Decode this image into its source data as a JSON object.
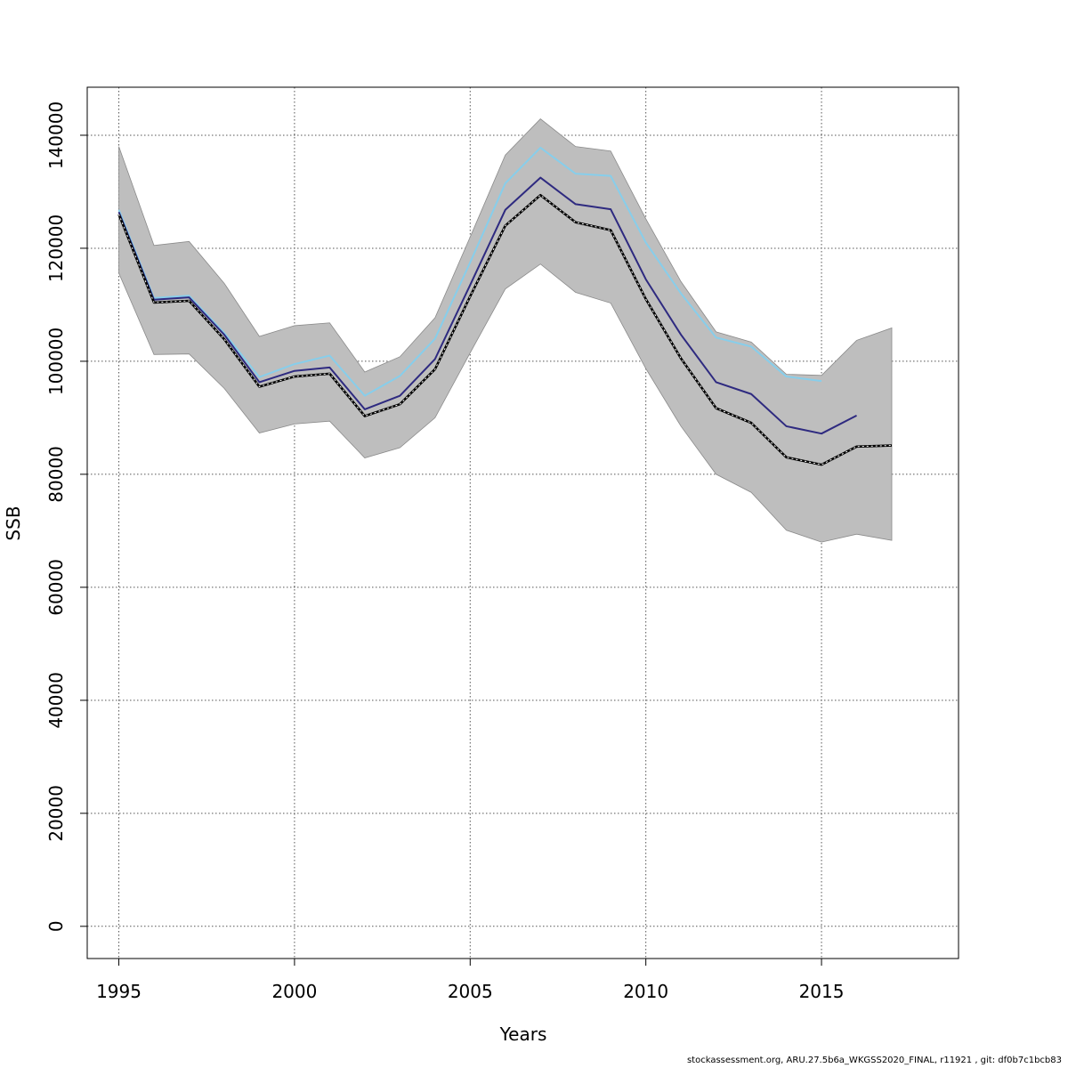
{
  "chart_data": {
    "type": "line",
    "title": "",
    "xlabel": "Years",
    "ylabel": "SSB",
    "xlim": [
      1994.1,
      2018.9
    ],
    "ylim": [
      -5700,
      148500
    ],
    "xticks": [
      1995,
      2000,
      2005,
      2010,
      2015
    ],
    "yticks": [
      0,
      20000,
      40000,
      60000,
      80000,
      100000,
      120000,
      140000
    ],
    "grid": true,
    "grid_style": "dotted",
    "legend": "none",
    "band": {
      "color": "#bebebe",
      "x": [
        1995,
        1996,
        1997,
        1998,
        1999,
        2000,
        2001,
        2002,
        2003,
        2004,
        2005,
        2006,
        2007,
        2008,
        2009,
        2010,
        2011,
        2012,
        2013,
        2014,
        2015,
        2016,
        2017
      ],
      "upper": [
        138000,
        120500,
        121200,
        113800,
        104400,
        106300,
        106800,
        98100,
        100800,
        107700,
        122000,
        136500,
        142900,
        138000,
        137200,
        125200,
        114100,
        105200,
        103400,
        97700,
        97500,
        103700,
        105900
      ],
      "lower": [
        115600,
        101200,
        101300,
        95200,
        87300,
        88900,
        89400,
        82900,
        84700,
        90000,
        101500,
        112800,
        117200,
        112200,
        110300,
        98700,
        88500,
        80000,
        76800,
        70100,
        68000,
        69400,
        68300
      ]
    },
    "series": [
      {
        "color": "#87ceeb",
        "style": "solid",
        "x": [
          1995,
          1996,
          1997,
          1998,
          1999,
          2000,
          2001,
          2002,
          2003,
          2004,
          2005,
          2006,
          2007,
          2008,
          2009,
          2010,
          2011,
          2012,
          2013,
          2014,
          2015
        ],
        "values": [
          126800,
          111200,
          111600,
          105000,
          97200,
          99500,
          101000,
          93900,
          97400,
          104000,
          117500,
          131500,
          137800,
          133200,
          132800,
          121000,
          112000,
          104200,
          102600,
          97300,
          96500
        ]
      },
      {
        "color": "#2e2a80",
        "style": "solid",
        "x": [
          1995,
          1996,
          1997,
          1998,
          1999,
          2000,
          2001,
          2002,
          2003,
          2004,
          2005,
          2006,
          2007,
          2008,
          2009,
          2010,
          2011,
          2012,
          2013,
          2014,
          2015,
          2016
        ],
        "values": [
          126400,
          110900,
          111300,
          104700,
          96300,
          98300,
          98900,
          91500,
          93900,
          100400,
          113500,
          126800,
          132500,
          127800,
          126900,
          114500,
          104700,
          96300,
          94200,
          88500,
          87200,
          90400
        ]
      },
      {
        "color": "#000000",
        "style": "dashed",
        "x": [
          1995,
          1996,
          1997,
          1998,
          1999,
          2000,
          2001,
          2002,
          2003,
          2004,
          2005,
          2006,
          2007,
          2008,
          2009,
          2010,
          2011,
          2012,
          2013,
          2014,
          2015,
          2016,
          2017
        ],
        "values": [
          126000,
          110400,
          110700,
          103900,
          95500,
          97300,
          97800,
          90300,
          92400,
          98600,
          111500,
          124000,
          129400,
          124600,
          123200,
          111000,
          100500,
          91700,
          89100,
          83000,
          81700,
          84900,
          85100
        ]
      }
    ]
  },
  "footer": {
    "text": "stockassessment.org, ARU.27.5b6a_WKGSS2020_FINAL, r11921 , git: df0b7c1bcb83"
  }
}
